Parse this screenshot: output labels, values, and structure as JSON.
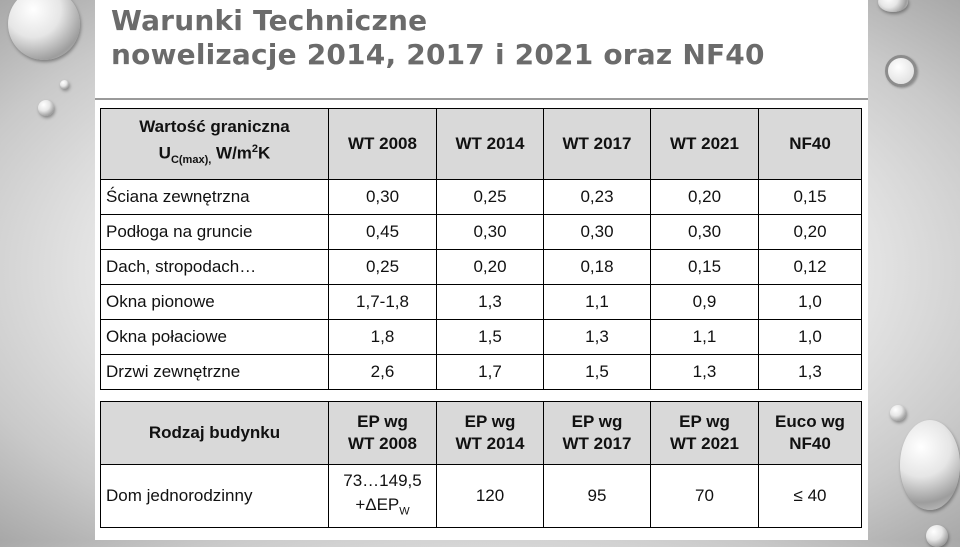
{
  "slide": {
    "title_line1": "Warunki Techniczne",
    "title_line2": "nowelizacje 2014, 2017 i 2021 oraz NF40"
  },
  "table_u": {
    "header": {
      "col0_line1": "Wartość graniczna",
      "col0_u": "U",
      "col0_sub": "C(max),",
      "col0_unit": " W/m",
      "col0_sup": "2",
      "col0_unit_end": "K",
      "cols": [
        "WT 2008",
        "WT 2014",
        "WT 2017",
        "WT 2021",
        "NF40"
      ]
    },
    "rows": [
      {
        "label": "Ściana zewnętrzna",
        "values": [
          "0,30",
          "0,25",
          "0,23",
          "0,20",
          "0,15"
        ]
      },
      {
        "label": "Podłoga na gruncie",
        "values": [
          "0,45",
          "0,30",
          "0,30",
          "0,30",
          "0,20"
        ]
      },
      {
        "label": "Dach, stropodach…",
        "values": [
          "0,25",
          "0,20",
          "0,18",
          "0,15",
          "0,12"
        ]
      },
      {
        "label": "Okna pionowe",
        "values": [
          "1,7-1,8",
          "1,3",
          "1,1",
          "0,9",
          "1,0"
        ]
      },
      {
        "label": "Okna połaciowe",
        "values": [
          "1,8",
          "1,5",
          "1,3",
          "1,1",
          "1,0"
        ]
      },
      {
        "label": "Drzwi zewnętrzne",
        "values": [
          "2,6",
          "1,7",
          "1,5",
          "1,3",
          "1,3"
        ]
      }
    ]
  },
  "table_ep": {
    "header": {
      "col0": "Rodzaj budynku",
      "cols": [
        {
          "line1": "EP wg",
          "line2": "WT 2008"
        },
        {
          "line1": "EP wg",
          "line2": "WT 2014"
        },
        {
          "line1": "EP wg",
          "line2": "WT 2017"
        },
        {
          "line1": "EP wg",
          "line2": "WT 2021"
        },
        {
          "line1": "Euco wg",
          "line2": "NF40"
        }
      ]
    },
    "row": {
      "label": "Dom jednorodzinny",
      "wt2008_line1": "73…149,5",
      "wt2008_line2": "+ΔEP",
      "wt2008_sub": "W",
      "values": [
        "120",
        "95",
        "70",
        "≤ 40"
      ]
    }
  }
}
